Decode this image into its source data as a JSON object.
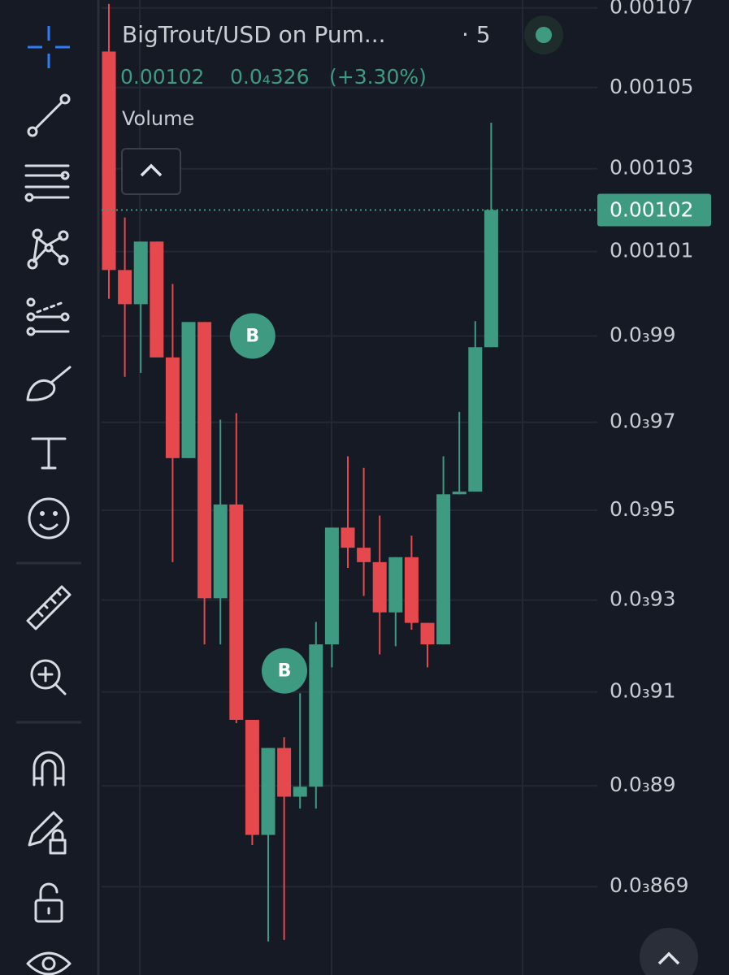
{
  "chart_data": {
    "type": "candlestick",
    "title": "BigTrout/USD on Pum...",
    "interval": "· 5",
    "indicator": "Volume",
    "last_price": 0.00102,
    "change": {
      "value": 3.26e-05,
      "label": "0.0₄326"
    },
    "change_pct": {
      "value": 3.3,
      "label": "(+3.30%)"
    },
    "log_scale": true,
    "grid": true,
    "up_color": "#3e9b82",
    "down_color": "#e5484d",
    "ylim": [
      0.000851,
      0.001072
    ],
    "yticks": [
      0.00107,
      0.00105,
      0.00103,
      0.00101,
      {
        "value": 0.00099,
        "label": "0.0₃99"
      },
      {
        "value": 0.00097,
        "label": "0.0₃97"
      },
      {
        "value": 0.00095,
        "label": "0.0₃95"
      },
      {
        "value": 0.00093,
        "label": "0.0₃93"
      },
      {
        "value": 0.00091,
        "label": "0.0₃91"
      },
      {
        "value": 0.00089,
        "label": "0.0₃89"
      },
      {
        "value": 0.000869,
        "label": "0.0₃869"
      }
    ],
    "open": [
      0.001059,
      0.0010056,
      0.0009975,
      0.0010124,
      0.000985,
      0.0009618,
      0.0009933,
      0.0009304,
      0.0009513,
      0.000904,
      0.0008797,
      0.000898,
      0.0008877,
      0.0008898,
      0.0009203,
      0.0009461,
      0.0009416,
      0.0009384,
      0.0009273,
      0.0009395,
      0.000925,
      0.0009203,
      0.0009536,
      0.0009542,
      0.0009874
    ],
    "high": [
      0.001071,
      0.0010182,
      0.0010124,
      0.0010124,
      0.0010023,
      0.0009933,
      0.0009933,
      0.0009706,
      0.0009721,
      0.000904,
      0.000898,
      0.0009003,
      0.0009097,
      0.0009252,
      0.0009461,
      0.0009622,
      0.0009596,
      0.0009488,
      0.0009395,
      0.0009443,
      0.000925,
      0.0009622,
      0.0009724,
      0.0009935,
      0.0010413
    ],
    "low": [
      0.0009988,
      0.0009805,
      0.0009814,
      0.000985,
      0.0009384,
      0.0009618,
      0.0009203,
      0.0009203,
      0.0009033,
      0.0008776,
      0.0008578,
      0.0008581,
      0.0008852,
      0.0008852,
      0.0009153,
      0.0009371,
      0.0009309,
      0.0009181,
      0.0009199,
      0.0009235,
      0.0009153,
      0.0009203,
      0.0009536,
      0.0009542,
      0.0009874
    ],
    "close": [
      0.0010056,
      0.0009975,
      0.0010124,
      0.000985,
      0.0009618,
      0.0009933,
      0.0009304,
      0.0009513,
      0.000904,
      0.0008797,
      0.000898,
      0.0008877,
      0.0008898,
      0.0009203,
      0.0009461,
      0.0009416,
      0.0009384,
      0.0009273,
      0.0009395,
      0.000925,
      0.0009203,
      0.0009536,
      0.0009542,
      0.0009874,
      0.00102
    ],
    "markers": [
      {
        "label": "B",
        "bar": 8
      },
      {
        "label": "B",
        "bar": 10
      }
    ]
  }
}
